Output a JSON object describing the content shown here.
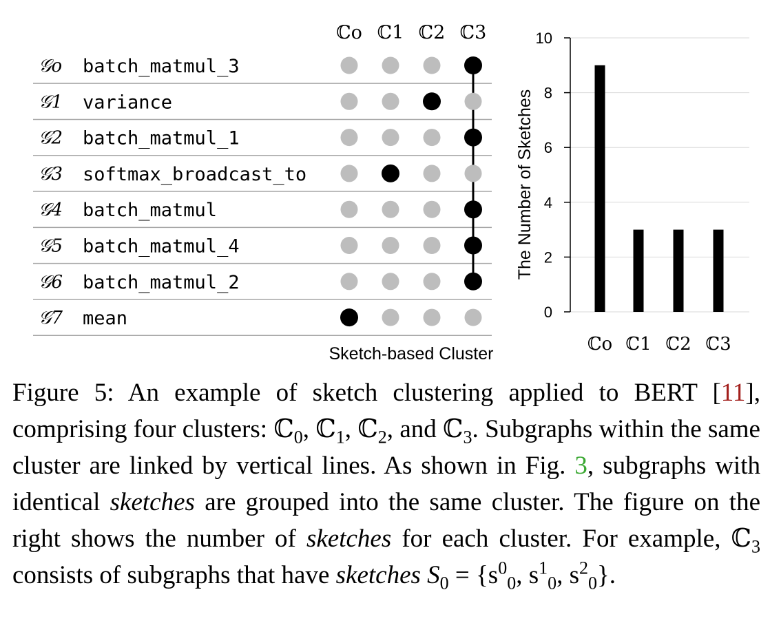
{
  "figure": {
    "cluster_header": [
      "ℂo",
      "ℂ1",
      "ℂ2",
      "ℂ3"
    ],
    "rows": [
      {
        "graph": "𝒢o",
        "name": "batch_matmul_3",
        "cluster": 3
      },
      {
        "graph": "𝒢1",
        "name": "variance",
        "cluster": 2
      },
      {
        "graph": "𝒢2",
        "name": "batch_matmul_1",
        "cluster": 3
      },
      {
        "graph": "𝒢3",
        "name": "softmax_broadcast_to",
        "cluster": 1
      },
      {
        "graph": "𝒢4",
        "name": "batch_matmul",
        "cluster": 3
      },
      {
        "graph": "𝒢5",
        "name": "batch_matmul_4",
        "cluster": 3
      },
      {
        "graph": "𝒢6",
        "name": "batch_matmul_2",
        "cluster": 3
      },
      {
        "graph": "𝒢7",
        "name": "mean",
        "cluster": 0
      }
    ],
    "xlabel": "Sketch-based Cluster",
    "colors": {
      "active": "#000000",
      "inactive": "#bdbdbd",
      "grid": "#d9d9d9"
    }
  },
  "chart_data": {
    "type": "bar",
    "categories": [
      "ℂo",
      "ℂ1",
      "ℂ2",
      "ℂ3"
    ],
    "values": [
      9,
      3,
      3,
      3
    ],
    "ylabel": "The Number of Sketches",
    "ylim": [
      0,
      10
    ],
    "yticks": [
      0,
      2,
      4,
      6,
      8,
      10
    ],
    "grid": true
  },
  "caption": {
    "label": "Figure 5:",
    "t1": " An example of sketch clustering applied to BERT [",
    "ref1": "11",
    "t2": "], comprising four clusters: ℂ",
    "s0": "0",
    "t3": ", ℂ",
    "s1": "1",
    "t4": ", ℂ",
    "s2": "2",
    "t5": ", and ℂ",
    "s3": "3",
    "t6": ". Subgraphs within the same cluster are linked by vertical lines. As shown in Fig. ",
    "ref2": "3",
    "t7": ", subgraphs with identical ",
    "em1": "sketches",
    "t8": " are grouped into the same cluster. The figure on the right shows the number of ",
    "em2": "sketches",
    "t9": " for each cluster. For example, ℂ",
    "s4": "3",
    "t10": " consists of subgraphs that have ",
    "em3": "sketches",
    "t11": " S",
    "s5": "0",
    "t12": " = {s",
    "p1": "0",
    "p1b": "0",
    "t13": ", s",
    "p2": "1",
    "p2b": "0",
    "t14": ", s",
    "p3": "2",
    "p3b": "0",
    "t15": "}."
  }
}
